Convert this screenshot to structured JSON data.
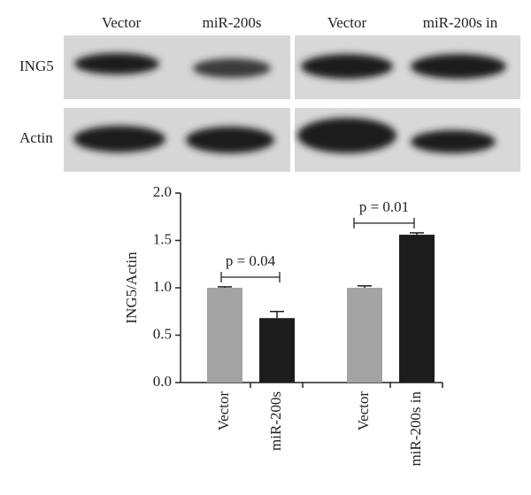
{
  "blot": {
    "lanes": [
      "Vector",
      "miR-200s",
      "Vector",
      "miR-200s in"
    ],
    "rows": [
      "ING5",
      "Actin"
    ]
  },
  "chart_data": {
    "type": "bar",
    "ylabel": "ING5/Actin",
    "categories": [
      "Vector",
      "miR-200s",
      "Vector",
      "miR-200s in"
    ],
    "values": [
      1.0,
      0.68,
      1.0,
      1.56
    ],
    "errors": [
      0.01,
      0.07,
      0.02,
      0.02
    ],
    "colors": [
      "#a3a3a3",
      "#1c1c1c",
      "#a3a3a3",
      "#1c1c1c"
    ],
    "annotations": [
      "p = 0.04",
      "p = 0.01"
    ],
    "ylim": [
      0,
      2
    ],
    "yticks": [
      {
        "value": 0,
        "label": "0.0"
      },
      0.5,
      {
        "value": 1,
        "label": "1.0"
      },
      1.5,
      {
        "value": 2,
        "label": "2.0"
      }
    ]
  }
}
